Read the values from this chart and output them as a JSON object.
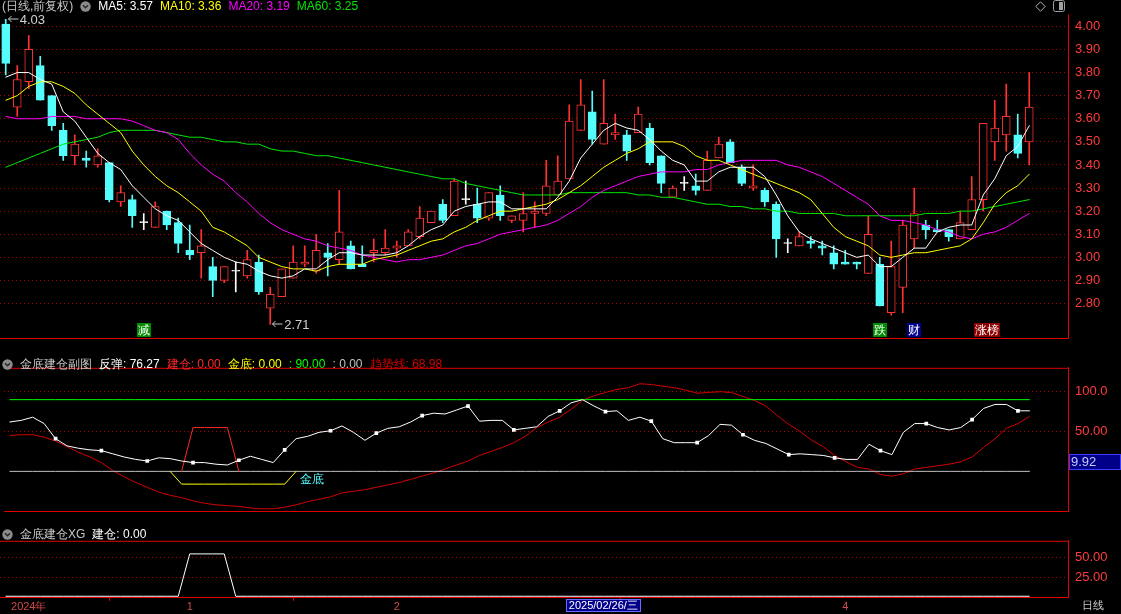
{
  "chart_data": [
    {
      "type": "candlestick",
      "title": "(日线,前复权)",
      "tick_labels": "y",
      "grid": "y",
      "categories": [
        null,
        null,
        null,
        null,
        null,
        null,
        null,
        null,
        null,
        null,
        null,
        null,
        null,
        null,
        null,
        null,
        null,
        null,
        null,
        null,
        null,
        null,
        null,
        null,
        null,
        null,
        null,
        null,
        null,
        null,
        null,
        null,
        null,
        null,
        null,
        null,
        null,
        null,
        null,
        null,
        null,
        null,
        null,
        null,
        null,
        null,
        null,
        null,
        null,
        null,
        null,
        null,
        null,
        null,
        null,
        null,
        null,
        null,
        null,
        null,
        null,
        null,
        null,
        null,
        null,
        null,
        null,
        null,
        null,
        null,
        null,
        null,
        null,
        null,
        null,
        null,
        null,
        null,
        null,
        null,
        null,
        null,
        null,
        null,
        null,
        null,
        null,
        null,
        null,
        null
      ],
      "ohlc": [
        [
          4.01,
          4.03,
          3.79,
          3.84
        ],
        [
          3.65,
          3.83,
          3.61,
          3.77
        ],
        [
          3.76,
          3.96,
          3.73,
          3.9
        ],
        [
          3.83,
          3.87,
          3.68,
          3.68
        ],
        [
          3.7,
          3.7,
          3.55,
          3.57
        ],
        [
          3.55,
          3.58,
          3.42,
          3.44
        ],
        [
          3.44,
          3.53,
          3.4,
          3.49
        ],
        [
          3.43,
          3.46,
          3.39,
          3.42
        ],
        [
          3.4,
          3.47,
          3.39,
          3.44
        ],
        [
          3.41,
          3.41,
          3.24,
          3.25
        ],
        [
          3.24,
          3.31,
          3.22,
          3.28
        ],
        [
          3.25,
          3.27,
          3.13,
          3.18
        ],
        [
          3.15,
          3.19,
          3.12,
          3.15
        ],
        [
          3.13,
          3.24,
          3.13,
          3.22
        ],
        [
          3.2,
          3.2,
          3.12,
          3.14
        ],
        [
          3.15,
          3.17,
          3.02,
          3.06
        ],
        [
          3.03,
          3.14,
          2.99,
          3.01
        ],
        [
          3.02,
          3.12,
          2.91,
          3.05
        ],
        [
          2.96,
          3.0,
          2.83,
          2.9
        ],
        [
          2.9,
          2.96,
          2.89,
          2.96
        ],
        [
          2.94,
          2.98,
          2.85,
          2.94
        ],
        [
          2.92,
          3.03,
          2.91,
          2.99
        ],
        [
          2.98,
          3.01,
          2.84,
          2.85
        ],
        [
          2.78,
          2.87,
          2.71,
          2.84
        ],
        [
          2.83,
          2.95,
          2.83,
          2.95
        ],
        [
          2.91,
          3.05,
          2.91,
          2.98
        ],
        [
          2.97,
          3.05,
          2.96,
          2.98
        ],
        [
          2.94,
          3.1,
          2.93,
          3.03
        ],
        [
          3.02,
          3.06,
          2.92,
          3.0
        ],
        [
          2.99,
          3.29,
          2.97,
          3.11
        ],
        [
          3.05,
          3.07,
          2.95,
          2.95
        ],
        [
          2.97,
          3.05,
          2.96,
          2.96
        ],
        [
          3.02,
          3.08,
          2.98,
          3.03
        ],
        [
          3.02,
          3.12,
          3.01,
          3.04
        ],
        [
          3.04,
          3.07,
          3.0,
          3.05
        ],
        [
          3.05,
          3.12,
          3.05,
          3.11
        ],
        [
          3.09,
          3.22,
          3.08,
          3.17
        ],
        [
          3.15,
          3.2,
          3.15,
          3.2
        ],
        [
          3.23,
          3.25,
          3.15,
          3.16
        ],
        [
          3.18,
          3.34,
          3.18,
          3.33
        ],
        [
          3.25,
          3.33,
          3.23,
          3.25
        ],
        [
          3.23,
          3.3,
          3.15,
          3.17
        ],
        [
          3.17,
          3.28,
          3.16,
          3.28
        ],
        [
          3.27,
          3.31,
          3.16,
          3.18
        ],
        [
          3.16,
          3.18,
          3.15,
          3.18
        ],
        [
          3.16,
          3.28,
          3.11,
          3.19
        ],
        [
          3.19,
          3.24,
          3.13,
          3.2
        ],
        [
          3.19,
          3.42,
          3.18,
          3.31
        ],
        [
          3.27,
          3.44,
          3.27,
          3.33
        ],
        [
          3.34,
          3.66,
          3.34,
          3.59
        ],
        [
          3.55,
          3.77,
          3.55,
          3.66
        ],
        [
          3.63,
          3.72,
          3.49,
          3.51
        ],
        [
          3.49,
          3.77,
          3.49,
          3.58
        ],
        [
          3.53,
          3.62,
          3.51,
          3.54
        ],
        [
          3.53,
          3.55,
          3.42,
          3.46
        ],
        [
          3.54,
          3.65,
          3.54,
          3.62
        ],
        [
          3.56,
          3.58,
          3.4,
          3.41
        ],
        [
          3.44,
          3.44,
          3.28,
          3.32
        ],
        [
          3.26,
          3.31,
          3.26,
          3.3
        ],
        [
          3.32,
          3.35,
          3.29,
          3.32
        ],
        [
          3.31,
          3.36,
          3.27,
          3.29
        ],
        [
          3.29,
          3.46,
          3.29,
          3.42
        ],
        [
          3.43,
          3.52,
          3.43,
          3.49
        ],
        [
          3.5,
          3.51,
          3.41,
          3.41
        ],
        [
          3.39,
          3.4,
          3.31,
          3.32
        ],
        [
          3.3,
          3.4,
          3.29,
          3.31
        ],
        [
          3.29,
          3.3,
          3.22,
          3.24
        ],
        [
          3.23,
          3.24,
          3.0,
          3.08
        ],
        [
          3.06,
          3.08,
          3.02,
          3.06
        ],
        [
          3.05,
          3.11,
          3.05,
          3.09
        ],
        [
          3.07,
          3.09,
          3.04,
          3.06
        ],
        [
          3.05,
          3.07,
          3.01,
          3.04
        ],
        [
          3.02,
          3.05,
          2.95,
          2.97
        ],
        [
          2.98,
          3.03,
          2.97,
          2.97
        ],
        [
          2.98,
          2.98,
          2.95,
          2.97
        ],
        [
          2.93,
          3.18,
          2.93,
          3.1
        ],
        [
          2.97,
          3.0,
          2.79,
          2.79
        ],
        [
          2.76,
          3.07,
          2.75,
          2.96
        ],
        [
          2.87,
          3.16,
          2.76,
          3.14
        ],
        [
          3.08,
          3.3,
          3.04,
          3.19
        ],
        [
          3.14,
          3.16,
          3.08,
          3.12
        ],
        [
          3.12,
          3.16,
          3.11,
          3.11
        ],
        [
          3.12,
          3.12,
          3.07,
          3.09
        ],
        [
          3.08,
          3.2,
          3.08,
          3.15
        ],
        [
          3.12,
          3.35,
          3.12,
          3.25
        ],
        [
          3.25,
          3.58,
          3.2,
          3.58
        ],
        [
          3.5,
          3.68,
          3.42,
          3.56
        ],
        [
          3.53,
          3.75,
          3.46,
          3.61
        ],
        [
          3.53,
          3.62,
          3.43,
          3.45
        ],
        [
          3.5,
          3.8,
          3.4,
          3.65
        ]
      ],
      "colors": [
        "#54fcfc",
        "#ff3232",
        "#ff3232",
        "#54fcfc",
        "#54fcfc",
        "#54fcfc",
        "#ff3232",
        "#54fcfc",
        "#ff3232",
        "#54fcfc",
        "#ff3232",
        "#54fcfc",
        "#ffffff",
        "#ff3232",
        "#54fcfc",
        "#54fcfc",
        "#54fcfc",
        "#ff3232",
        "#54fcfc",
        "#ff3232",
        "#ffffff",
        "#ff3232",
        "#54fcfc",
        "#ff3232",
        "#ff3232",
        "#ff3232",
        "#ff3232",
        "#ff3232",
        "#54fcfc",
        "#ff3232",
        "#54fcfc",
        "#54fcfc",
        "#ff3232",
        "#ff3232",
        "#ff3232",
        "#ff3232",
        "#ff3232",
        "#ff3232",
        "#54fcfc",
        "#ff3232",
        "#ffffff",
        "#54fcfc",
        "#ff3232",
        "#54fcfc",
        "#ff3232",
        "#ff3232",
        "#ff3232",
        "#ff3232",
        "#ff3232",
        "#ff3232",
        "#ff3232",
        "#54fcfc",
        "#ff3232",
        "#ff3232",
        "#54fcfc",
        "#ff3232",
        "#54fcfc",
        "#54fcfc",
        "#ff3232",
        "#ffffff",
        "#54fcfc",
        "#ff3232",
        "#ff3232",
        "#54fcfc",
        "#54fcfc",
        "#ff3232",
        "#54fcfc",
        "#54fcfc",
        "#ffffff",
        "#ff3232",
        "#54fcfc",
        "#54fcfc",
        "#54fcfc",
        "#54fcfc",
        "#54fcfc",
        "#ff3232",
        "#54fcfc",
        "#ff3232",
        "#ff3232",
        "#ff3232",
        "#54fcfc",
        "#54fcfc",
        "#54fcfc",
        "#ff3232",
        "#ff3232",
        "#ff3232",
        "#ff3232",
        "#ff3232",
        "#54fcfc",
        "#ff3232"
      ],
      "series": [
        {
          "name": "MA5: 3.57",
          "type": "line",
          "color": "#ffffff",
          "values": [
            3.78,
            3.8,
            3.8,
            3.77,
            3.75,
            3.63,
            3.59,
            3.52,
            3.45,
            3.41,
            3.38,
            3.31,
            3.26,
            3.21,
            3.18,
            3.16,
            3.11,
            3.06,
            3.03,
            3.0,
            2.98,
            2.97,
            2.94,
            2.92,
            2.91,
            2.92,
            2.95,
            2.95,
            2.99,
            3.02,
            3.02,
            3.01,
            3.01,
            3.01,
            3.02,
            3.05,
            3.09,
            3.12,
            3.14,
            3.2,
            3.22,
            3.23,
            3.24,
            3.24,
            3.21,
            3.21,
            3.21,
            3.21,
            3.26,
            3.33,
            3.43,
            3.49,
            3.55,
            3.58,
            3.56,
            3.55,
            3.51,
            3.46,
            3.42,
            3.4,
            3.33,
            3.33,
            3.37,
            3.39,
            3.39,
            3.39,
            3.35,
            3.27,
            3.18,
            3.11,
            3.08,
            3.06,
            3.04,
            3.02,
            3.0,
            3.01,
            2.96,
            2.96,
            3.0,
            3.04,
            3.04,
            3.11,
            3.13,
            3.14,
            3.14,
            3.27,
            3.34,
            3.44,
            3.48,
            3.57
          ]
        },
        {
          "name": "MA10: 3.36",
          "type": "line",
          "color": "#ffff00",
          "values": [
            3.68,
            3.7,
            3.74,
            3.76,
            3.76,
            3.74,
            3.71,
            3.66,
            3.62,
            3.58,
            3.54,
            3.46,
            3.4,
            3.35,
            3.31,
            3.28,
            3.24,
            3.2,
            3.13,
            3.11,
            3.08,
            3.05,
            3.0,
            2.98,
            2.96,
            2.95,
            2.95,
            2.94,
            2.96,
            2.97,
            2.97,
            2.97,
            2.99,
            3.0,
            3.01,
            3.03,
            3.05,
            3.07,
            3.08,
            3.11,
            3.13,
            3.16,
            3.18,
            3.2,
            3.2,
            3.21,
            3.22,
            3.23,
            3.25,
            3.28,
            3.31,
            3.35,
            3.39,
            3.42,
            3.45,
            3.47,
            3.5,
            3.5,
            3.5,
            3.48,
            3.44,
            3.42,
            3.42,
            3.4,
            3.38,
            3.36,
            3.34,
            3.32,
            3.3,
            3.28,
            3.25,
            3.19,
            3.13,
            3.09,
            3.07,
            3.05,
            3.01,
            3.0,
            3.01,
            3.02,
            3.02,
            3.03,
            3.04,
            3.05,
            3.08,
            3.15,
            3.23,
            3.28,
            3.31,
            3.36
          ]
        },
        {
          "name": "MA20: 3.19",
          "type": "line",
          "color": "#ff00ff",
          "values": [
            3.61,
            3.6,
            3.6,
            3.6,
            3.61,
            3.61,
            3.61,
            3.6,
            3.6,
            3.6,
            3.6,
            3.59,
            3.57,
            3.55,
            3.54,
            3.51,
            3.45,
            3.4,
            3.36,
            3.33,
            3.28,
            3.24,
            3.19,
            3.15,
            3.12,
            3.1,
            3.08,
            3.07,
            3.05,
            3.04,
            3.03,
            3.01,
            3.0,
            2.99,
            2.98,
            2.99,
            2.99,
            3.0,
            3.01,
            3.03,
            3.05,
            3.06,
            3.08,
            3.1,
            3.11,
            3.12,
            3.13,
            3.14,
            3.16,
            3.19,
            3.22,
            3.26,
            3.29,
            3.31,
            3.33,
            3.35,
            3.36,
            3.37,
            3.37,
            3.37,
            3.38,
            3.38,
            3.4,
            3.41,
            3.42,
            3.42,
            3.42,
            3.42,
            3.4,
            3.39,
            3.37,
            3.35,
            3.32,
            3.29,
            3.26,
            3.23,
            3.18,
            3.16,
            3.16,
            3.15,
            3.14,
            3.12,
            3.11,
            3.09,
            3.08,
            3.1,
            3.11,
            3.13,
            3.16,
            3.19
          ]
        },
        {
          "name": "MA60: 3.25",
          "type": "line",
          "color": "#00e600",
          "values": [
            3.39,
            3.41,
            3.43,
            3.45,
            3.47,
            3.49,
            3.5,
            3.51,
            3.52,
            3.54,
            3.55,
            3.55,
            3.55,
            3.55,
            3.54,
            3.53,
            3.52,
            3.52,
            3.51,
            3.5,
            3.5,
            3.49,
            3.49,
            3.47,
            3.46,
            3.46,
            3.45,
            3.44,
            3.44,
            3.43,
            3.42,
            3.41,
            3.4,
            3.39,
            3.38,
            3.37,
            3.36,
            3.35,
            3.34,
            3.34,
            3.32,
            3.31,
            3.3,
            3.29,
            3.28,
            3.27,
            3.27,
            3.27,
            3.27,
            3.28,
            3.28,
            3.28,
            3.28,
            3.28,
            3.28,
            3.27,
            3.27,
            3.26,
            3.26,
            3.25,
            3.24,
            3.23,
            3.23,
            3.22,
            3.22,
            3.21,
            3.21,
            3.2,
            3.2,
            3.19,
            3.19,
            3.19,
            3.19,
            3.18,
            3.18,
            3.18,
            3.18,
            3.18,
            3.18,
            3.18,
            3.19,
            3.19,
            3.19,
            3.2,
            3.2,
            3.21,
            3.22,
            3.23,
            3.24,
            3.25
          ]
        }
      ],
      "ylim": [
        2.65,
        4.05
      ],
      "yticks": [
        {
          "value": 2.8,
          "label": "2.80"
        },
        {
          "value": 2.9,
          "label": "2.90"
        },
        {
          "value": 3,
          "label": "3.00"
        },
        {
          "value": 3.1,
          "label": "3.10"
        },
        {
          "value": 3.2,
          "label": "3.20"
        },
        {
          "value": 3.3,
          "label": "3.30"
        },
        {
          "value": 3.4,
          "label": "3.40"
        },
        {
          "value": 3.5,
          "label": "3.50"
        },
        {
          "value": 3.6,
          "label": "3.60"
        },
        {
          "value": 3.7,
          "label": "3.70"
        },
        {
          "value": 3.8,
          "label": "3.80"
        },
        {
          "value": 3.9,
          "label": "3.90"
        },
        {
          "value": 4,
          "label": "4.00"
        }
      ],
      "annotations": [
        "4.03",
        "2.71",
        "减",
        "跌",
        "财",
        "涨榜"
      ]
    },
    {
      "type": "line",
      "title": "金底建仓副图",
      "tick_labels": "y",
      "grid": "y",
      "categories": [
        null,
        null,
        null,
        null,
        null,
        null,
        null,
        null,
        null,
        null,
        null,
        null,
        null,
        null,
        null,
        null,
        null,
        null,
        null,
        null,
        null,
        null,
        null,
        null,
        null,
        null,
        null,
        null,
        null,
        null,
        null,
        null,
        null,
        null,
        null,
        null,
        null,
        null,
        null,
        null,
        null,
        null,
        null,
        null,
        null,
        null,
        null,
        null,
        null,
        null,
        null,
        null,
        null,
        null,
        null,
        null,
        null,
        null,
        null,
        null,
        null,
        null,
        null,
        null,
        null,
        null,
        null,
        null,
        null,
        null,
        null,
        null,
        null,
        null,
        null,
        null,
        null,
        null,
        null,
        null,
        null,
        null,
        null,
        null,
        null,
        null,
        null,
        null,
        null,
        null
      ],
      "series": [
        {
          "type": "scatter",
          "color": "#ffffff",
          "marker": "square",
          "values": [
            null,
            null,
            null,
            null,
            41,
            null,
            null,
            null,
            26,
            null,
            null,
            null,
            13,
            null,
            null,
            null,
            11,
            null,
            null,
            null,
            14,
            null,
            null,
            null,
            27,
            null,
            null,
            null,
            51,
            null,
            null,
            null,
            48,
            null,
            null,
            null,
            70,
            null,
            null,
            null,
            82,
            null,
            null,
            null,
            52,
            null,
            null,
            null,
            76,
            null,
            null,
            null,
            75,
            null,
            null,
            null,
            63,
            null,
            null,
            null,
            36,
            null,
            null,
            null,
            46,
            null,
            null,
            null,
            21,
            null,
            null,
            null,
            17,
            null,
            null,
            null,
            26,
            null,
            null,
            null,
            60,
            null,
            null,
            null,
            65,
            null,
            null,
            null,
            76,
            null
          ]
        },
        {
          "name": "反弹: 76.27",
          "color": "#ffffff",
          "values": [
            62,
            64,
            68,
            60,
            41,
            32,
            29,
            27,
            26,
            22,
            18,
            15,
            13,
            17,
            16,
            13,
            11,
            11,
            9,
            8,
            14,
            19,
            15,
            11,
            27,
            41,
            44,
            49,
            51,
            57,
            49,
            39,
            48,
            54,
            56,
            62,
            70,
            73,
            72,
            77,
            82,
            63,
            64,
            64,
            52,
            54,
            56,
            69,
            76,
            86,
            90,
            82,
            75,
            76,
            64,
            68,
            63,
            41,
            36,
            36,
            36,
            45,
            59,
            58,
            46,
            39,
            35,
            28,
            21,
            22,
            21,
            20,
            17,
            15,
            15,
            34,
            26,
            21,
            49,
            60,
            60,
            55,
            52,
            55,
            65,
            79,
            84,
            84,
            76,
            76
          ]
        },
        {
          "name": "建仓: 0.00",
          "color": "#ff2828",
          "values": [
            null,
            null,
            null,
            null,
            null,
            null,
            null,
            null,
            null,
            null,
            null,
            null,
            null,
            null,
            null,
            0,
            55,
            55,
            55,
            55,
            0,
            null,
            null,
            null,
            null,
            null,
            null,
            null,
            null,
            null,
            null,
            null,
            null,
            null,
            null,
            null,
            null,
            null,
            null,
            null,
            null,
            null,
            null,
            null,
            null,
            null,
            null,
            null,
            null,
            null,
            null,
            null,
            null,
            null,
            null,
            null,
            null,
            null,
            null,
            null,
            null,
            null,
            null,
            null,
            null,
            null,
            null,
            null,
            null,
            null,
            null,
            null,
            null,
            null,
            null,
            null,
            null,
            null,
            null,
            null,
            null,
            null,
            null,
            null,
            null,
            null,
            null,
            null,
            null,
            null
          ]
        },
        {
          "name": "金底: 0.00",
          "color": "#ffff00",
          "values": [
            null,
            null,
            null,
            null,
            null,
            null,
            null,
            null,
            null,
            null,
            null,
            null,
            null,
            null,
            0,
            -16,
            -16,
            -16,
            -16,
            -16,
            -16,
            -16,
            -16,
            -16,
            -16,
            0,
            null,
            null,
            null,
            null,
            null,
            null,
            null,
            null,
            null,
            null,
            null,
            null,
            null,
            null,
            null,
            null,
            null,
            null,
            null,
            null,
            null,
            null,
            null,
            null,
            null,
            null,
            null,
            null,
            null,
            null,
            null,
            null,
            null,
            null,
            null,
            null,
            null,
            null,
            null,
            null,
            null,
            null,
            null,
            null,
            null,
            null,
            null,
            null,
            null,
            null,
            null,
            null,
            null,
            null,
            null,
            null,
            null,
            null,
            null,
            null,
            null,
            null,
            null,
            null
          ]
        },
        {
          "name": ": 90.00",
          "color": "#00ff00",
          "values": [
            90,
            90,
            90,
            90,
            90,
            90,
            90,
            90,
            90,
            90,
            90,
            90,
            90,
            90,
            90,
            90,
            90,
            90,
            90,
            90,
            90,
            90,
            90,
            90,
            90,
            90,
            90,
            90,
            90,
            90,
            90,
            90,
            90,
            90,
            90,
            90,
            90,
            90,
            90,
            90,
            90,
            90,
            90,
            90,
            90,
            90,
            90,
            90,
            90,
            90,
            90,
            90,
            90,
            90,
            90,
            90,
            90,
            90,
            90,
            90,
            90,
            90,
            90,
            90,
            90,
            90,
            90,
            90,
            90,
            90,
            90,
            90,
            90,
            90,
            90,
            90,
            90,
            90,
            90,
            90,
            90,
            90,
            90,
            90,
            90,
            90,
            90,
            90,
            90,
            90
          ]
        },
        {
          "name": ": 0.00",
          "color": "#c0c0c0",
          "values": [
            0,
            0,
            0,
            0,
            0,
            0,
            0,
            0,
            0,
            0,
            0,
            0,
            0,
            0,
            0,
            0,
            0,
            0,
            0,
            0,
            0,
            0,
            0,
            0,
            0,
            0,
            0,
            0,
            0,
            0,
            0,
            0,
            0,
            0,
            0,
            0,
            0,
            0,
            0,
            0,
            0,
            0,
            0,
            0,
            0,
            0,
            0,
            0,
            0,
            0,
            0,
            0,
            0,
            0,
            0,
            0,
            0,
            0,
            0,
            0,
            0,
            0,
            0,
            0,
            0,
            0,
            0,
            0,
            0,
            0,
            0,
            0,
            0,
            0,
            0,
            0,
            0,
            0,
            0,
            0,
            0,
            0,
            0,
            0,
            0,
            0,
            0,
            0,
            0,
            0
          ]
        },
        {
          "name": "趋势线: 68.98",
          "color": "#d20000",
          "values": [
            45,
            46,
            46,
            43,
            38,
            31,
            24,
            18,
            11,
            1,
            -7,
            -14,
            -20,
            -26,
            -30,
            -33,
            -37,
            -40,
            -42,
            -43,
            -44,
            -46,
            -47,
            -47,
            -45,
            -42,
            -38,
            -35,
            -32,
            -27,
            -25,
            -23,
            -20,
            -17,
            -14,
            -10,
            -6,
            -2,
            3,
            8,
            13,
            20,
            25,
            30,
            36,
            44,
            55,
            62,
            68,
            78,
            89,
            95,
            99,
            103,
            105,
            110,
            109,
            107,
            105,
            102,
            98,
            99,
            100,
            99,
            94,
            89,
            82,
            70,
            59,
            50,
            39,
            31,
            20,
            12,
            5,
            3,
            -4,
            -6,
            -3,
            3,
            5,
            7,
            9,
            12,
            18,
            30,
            41,
            54,
            60,
            69
          ]
        }
      ],
      "ylim": [
        -50,
        130
      ],
      "yticks": [
        {
          "value": 50,
          "label": "50.00"
        },
        {
          "value": 100,
          "label": "100.0"
        }
      ],
      "annotations": [
        "金底",
        "9.92"
      ]
    },
    {
      "type": "line",
      "title": "金底建仓XG",
      "grid": "y",
      "categories": [
        null,
        null,
        "2024年",
        null,
        null,
        null,
        null,
        null,
        null,
        null,
        null,
        null,
        null,
        null,
        null,
        null,
        "1",
        null,
        null,
        null,
        null,
        null,
        null,
        null,
        null,
        null,
        null,
        null,
        null,
        null,
        null,
        null,
        null,
        null,
        "2",
        null,
        null,
        null,
        null,
        null,
        null,
        null,
        null,
        null,
        null,
        null,
        null,
        null,
        null,
        null,
        null,
        null,
        null,
        null,
        null,
        null,
        null,
        null,
        null,
        null,
        null,
        null,
        null,
        null,
        null,
        null,
        null,
        null,
        null,
        null,
        null,
        null,
        null,
        "4",
        null,
        null,
        null,
        null,
        null,
        null,
        null,
        null,
        null,
        null,
        null,
        null,
        null,
        null,
        null,
        null
      ],
      "series": [
        {
          "name": "建仓: 0.00",
          "color": "#ffffff",
          "values": [
            0,
            0,
            0,
            0,
            0,
            0,
            0,
            0,
            0,
            0,
            0,
            0,
            0,
            0,
            0,
            0,
            55,
            55,
            55,
            55,
            0,
            0,
            0,
            0,
            0,
            0,
            0,
            0,
            0,
            0,
            0,
            0,
            0,
            0,
            0,
            0,
            0,
            0,
            0,
            0,
            0,
            0,
            0,
            0,
            0,
            0,
            0,
            0,
            0,
            0,
            0,
            0,
            0,
            0,
            0,
            0,
            0,
            0,
            0,
            0,
            0,
            0,
            0,
            0,
            0,
            0,
            0,
            0,
            0,
            0,
            0,
            0,
            0,
            0,
            0,
            0,
            0,
            0,
            0,
            0,
            0,
            0,
            0,
            0,
            0,
            0,
            0,
            0,
            0,
            0
          ]
        }
      ],
      "ylim": [
        -2,
        72
      ],
      "yticks": [
        {
          "value": 25,
          "label": "25.00"
        },
        {
          "value": 50,
          "label": "50.00"
        }
      ],
      "annotations": [
        "2025/02/26/三",
        "日线"
      ]
    }
  ]
}
